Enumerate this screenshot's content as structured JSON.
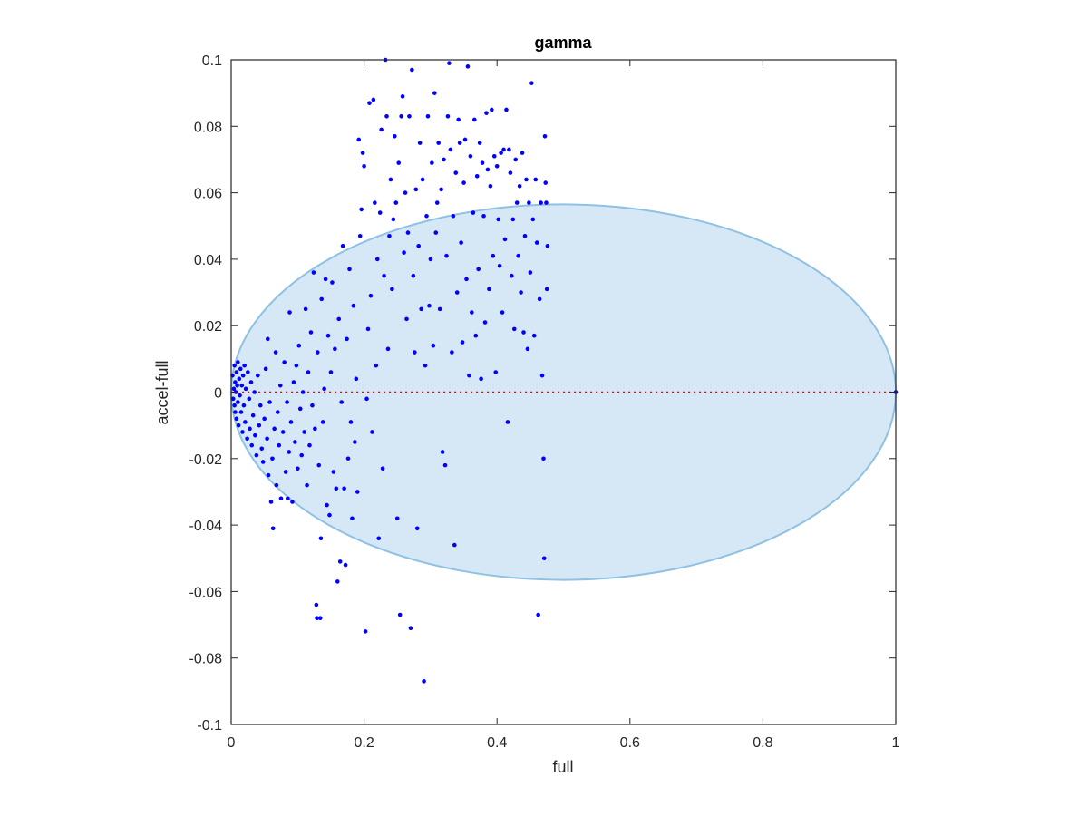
{
  "chart_data": {
    "type": "scatter",
    "title": "gamma",
    "xlabel": "full",
    "ylabel": "accel-full",
    "xlim": [
      0,
      1
    ],
    "ylim": [
      -0.1,
      0.1
    ],
    "xticks": [
      0,
      0.2,
      0.4,
      0.6,
      0.8,
      1
    ],
    "xtick_labels": [
      "0",
      "0.2",
      "0.4",
      "0.6",
      "0.8",
      "1"
    ],
    "yticks": [
      -0.1,
      -0.08,
      -0.06,
      -0.04,
      -0.02,
      0,
      0.02,
      0.04,
      0.06,
      0.08,
      0.1
    ],
    "ytick_labels": [
      "-0.1",
      "-0.08",
      "-0.06",
      "-0.04",
      "-0.02",
      "0",
      "0.02",
      "0.04",
      "0.06",
      "0.08",
      "0.1"
    ],
    "grid": false,
    "colors": {
      "points": "#0000ff",
      "ellipse_fill": "#d6e8f5",
      "ellipse_edge": "#8ec1e3",
      "reference_line": "#ff0000",
      "axes": "#262626"
    },
    "ellipse": {
      "center": [
        0.5,
        0
      ],
      "semi_axes": [
        0.5,
        0.0565
      ]
    },
    "reference_line": {
      "y": 0,
      "x": [
        0,
        1
      ],
      "style": "dotted"
    },
    "points": [
      [
        0.002,
        0.005
      ],
      [
        0.003,
        -0.002
      ],
      [
        0.004,
        0.001
      ],
      [
        0.005,
        0.008
      ],
      [
        0.005,
        -0.004
      ],
      [
        0.006,
        0.003
      ],
      [
        0.006,
        -0.006
      ],
      [
        0.007,
        0.0
      ],
      [
        0.008,
        0.006
      ],
      [
        0.008,
        -0.008
      ],
      [
        0.009,
        0.002
      ],
      [
        0.01,
        -0.003
      ],
      [
        0.01,
        0.009
      ],
      [
        0.011,
        -0.01
      ],
      [
        0.012,
        0.004
      ],
      [
        0.013,
        -0.001
      ],
      [
        0.014,
        0.007
      ],
      [
        0.015,
        -0.006
      ],
      [
        0.016,
        0.002
      ],
      [
        0.017,
        -0.012
      ],
      [
        0.018,
        0.005
      ],
      [
        0.019,
        -0.004
      ],
      [
        0.02,
        0.008
      ],
      [
        0.021,
        -0.009
      ],
      [
        0.022,
        0.001
      ],
      [
        0.024,
        -0.014
      ],
      [
        0.025,
        0.006
      ],
      [
        0.027,
        -0.002
      ],
      [
        0.028,
        -0.011
      ],
      [
        0.03,
        0.003
      ],
      [
        0.031,
        -0.016
      ],
      [
        0.033,
        -0.007
      ],
      [
        0.035,
        0.0
      ],
      [
        0.036,
        -0.013
      ],
      [
        0.038,
        -0.019
      ],
      [
        0.04,
        0.005
      ],
      [
        0.042,
        -0.01
      ],
      [
        0.044,
        -0.004
      ],
      [
        0.046,
        -0.017
      ],
      [
        0.048,
        -0.021
      ],
      [
        0.05,
        -0.008
      ],
      [
        0.052,
        0.007
      ],
      [
        0.054,
        -0.014
      ],
      [
        0.055,
        0.016
      ],
      [
        0.056,
        -0.025
      ],
      [
        0.058,
        -0.003
      ],
      [
        0.06,
        -0.033
      ],
      [
        0.062,
        -0.02
      ],
      [
        0.063,
        -0.041
      ],
      [
        0.065,
        -0.011
      ],
      [
        0.067,
        0.012
      ],
      [
        0.068,
        -0.028
      ],
      [
        0.07,
        -0.006
      ],
      [
        0.072,
        -0.016
      ],
      [
        0.074,
        0.002
      ],
      [
        0.075,
        -0.032
      ],
      [
        0.078,
        -0.012
      ],
      [
        0.08,
        0.009
      ],
      [
        0.082,
        -0.024
      ],
      [
        0.084,
        -0.003
      ],
      [
        0.085,
        -0.032
      ],
      [
        0.087,
        -0.018
      ],
      [
        0.088,
        0.024
      ],
      [
        0.09,
        -0.009
      ],
      [
        0.092,
        -0.033
      ],
      [
        0.094,
        0.003
      ],
      [
        0.096,
        -0.015
      ],
      [
        0.098,
        0.008
      ],
      [
        0.1,
        -0.023
      ],
      [
        0.102,
        0.014
      ],
      [
        0.104,
        -0.005
      ],
      [
        0.106,
        -0.019
      ],
      [
        0.108,
        0.0
      ],
      [
        0.11,
        -0.012
      ],
      [
        0.112,
        0.025
      ],
      [
        0.114,
        -0.028
      ],
      [
        0.116,
        0.006
      ],
      [
        0.118,
        -0.016
      ],
      [
        0.12,
        0.018
      ],
      [
        0.122,
        -0.004
      ],
      [
        0.124,
        0.036
      ],
      [
        0.126,
        -0.011
      ],
      [
        0.128,
        -0.064
      ],
      [
        0.129,
        -0.068
      ],
      [
        0.13,
        0.012
      ],
      [
        0.132,
        -0.022
      ],
      [
        0.134,
        -0.068
      ],
      [
        0.135,
        -0.044
      ],
      [
        0.136,
        0.028
      ],
      [
        0.138,
        -0.009
      ],
      [
        0.14,
        0.001
      ],
      [
        0.142,
        0.034
      ],
      [
        0.144,
        -0.034
      ],
      [
        0.146,
        0.017
      ],
      [
        0.148,
        -0.037
      ],
      [
        0.15,
        0.006
      ],
      [
        0.152,
        0.033
      ],
      [
        0.154,
        -0.024
      ],
      [
        0.156,
        0.013
      ],
      [
        0.158,
        -0.029
      ],
      [
        0.16,
        -0.057
      ],
      [
        0.162,
        0.022
      ],
      [
        0.164,
        -0.051
      ],
      [
        0.166,
        -0.003
      ],
      [
        0.168,
        0.044
      ],
      [
        0.17,
        -0.029
      ],
      [
        0.172,
        -0.052
      ],
      [
        0.174,
        0.016
      ],
      [
        0.176,
        -0.02
      ],
      [
        0.178,
        0.037
      ],
      [
        0.18,
        -0.009
      ],
      [
        0.182,
        -0.038
      ],
      [
        0.184,
        0.026
      ],
      [
        0.186,
        -0.015
      ],
      [
        0.188,
        0.004
      ],
      [
        0.19,
        -0.03
      ],
      [
        0.192,
        0.076
      ],
      [
        0.194,
        0.047
      ],
      [
        0.196,
        0.055
      ],
      [
        0.198,
        0.072
      ],
      [
        0.2,
        0.068
      ],
      [
        0.202,
        -0.072
      ],
      [
        0.204,
        -0.002
      ],
      [
        0.206,
        0.019
      ],
      [
        0.208,
        0.087
      ],
      [
        0.21,
        0.029
      ],
      [
        0.212,
        -0.012
      ],
      [
        0.214,
        0.088
      ],
      [
        0.216,
        0.057
      ],
      [
        0.218,
        0.008
      ],
      [
        0.22,
        0.04
      ],
      [
        0.222,
        -0.044
      ],
      [
        0.224,
        0.054
      ],
      [
        0.226,
        0.079
      ],
      [
        0.228,
        -0.023
      ],
      [
        0.23,
        0.035
      ],
      [
        0.232,
        0.1
      ],
      [
        0.234,
        0.083
      ],
      [
        0.236,
        0.013
      ],
      [
        0.238,
        0.047
      ],
      [
        0.24,
        0.064
      ],
      [
        0.242,
        0.031
      ],
      [
        0.244,
        0.052
      ],
      [
        0.246,
        0.077
      ],
      [
        0.248,
        0.057
      ],
      [
        0.25,
        -0.038
      ],
      [
        0.252,
        0.069
      ],
      [
        0.254,
        -0.067
      ],
      [
        0.256,
        0.083
      ],
      [
        0.258,
        0.089
      ],
      [
        0.26,
        0.042
      ],
      [
        0.262,
        0.06
      ],
      [
        0.264,
        0.022
      ],
      [
        0.266,
        0.048
      ],
      [
        0.268,
        0.083
      ],
      [
        0.27,
        -0.071
      ],
      [
        0.272,
        0.097
      ],
      [
        0.274,
        0.035
      ],
      [
        0.276,
        0.012
      ],
      [
        0.278,
        0.061
      ],
      [
        0.28,
        -0.041
      ],
      [
        0.282,
        0.044
      ],
      [
        0.284,
        0.075
      ],
      [
        0.286,
        0.025
      ],
      [
        0.288,
        0.064
      ],
      [
        0.29,
        -0.087
      ],
      [
        0.292,
        0.008
      ],
      [
        0.294,
        0.053
      ],
      [
        0.296,
        0.083
      ],
      [
        0.298,
        0.026
      ],
      [
        0.3,
        0.04
      ],
      [
        0.302,
        0.069
      ],
      [
        0.304,
        0.014
      ],
      [
        0.306,
        0.09
      ],
      [
        0.308,
        0.048
      ],
      [
        0.31,
        0.057
      ],
      [
        0.312,
        0.075
      ],
      [
        0.314,
        0.025
      ],
      [
        0.316,
        0.061
      ],
      [
        0.318,
        -0.018
      ],
      [
        0.32,
        0.07
      ],
      [
        0.322,
        -0.022
      ],
      [
        0.324,
        0.041
      ],
      [
        0.326,
        0.083
      ],
      [
        0.328,
        0.099
      ],
      [
        0.33,
        0.073
      ],
      [
        0.332,
        0.012
      ],
      [
        0.334,
        0.053
      ],
      [
        0.336,
        -0.046
      ],
      [
        0.338,
        0.066
      ],
      [
        0.34,
        0.03
      ],
      [
        0.342,
        0.082
      ],
      [
        0.344,
        0.075
      ],
      [
        0.346,
        0.045
      ],
      [
        0.348,
        0.015
      ],
      [
        0.35,
        0.063
      ],
      [
        0.352,
        0.076
      ],
      [
        0.354,
        0.034
      ],
      [
        0.356,
        0.098
      ],
      [
        0.358,
        0.005
      ],
      [
        0.36,
        0.071
      ],
      [
        0.362,
        0.024
      ],
      [
        0.364,
        0.054
      ],
      [
        0.366,
        0.082
      ],
      [
        0.368,
        0.017
      ],
      [
        0.37,
        0.065
      ],
      [
        0.372,
        0.037
      ],
      [
        0.374,
        0.075
      ],
      [
        0.376,
        0.004
      ],
      [
        0.378,
        0.069
      ],
      [
        0.38,
        0.053
      ],
      [
        0.382,
        0.021
      ],
      [
        0.384,
        0.084
      ],
      [
        0.386,
        0.067
      ],
      [
        0.388,
        0.031
      ],
      [
        0.39,
        0.062
      ],
      [
        0.392,
        0.085
      ],
      [
        0.394,
        0.041
      ],
      [
        0.396,
        0.071
      ],
      [
        0.398,
        0.006
      ],
      [
        0.4,
        0.068
      ],
      [
        0.402,
        0.052
      ],
      [
        0.404,
        0.038
      ],
      [
        0.406,
        0.072
      ],
      [
        0.408,
        0.024
      ],
      [
        0.41,
        0.073
      ],
      [
        0.412,
        0.046
      ],
      [
        0.414,
        0.085
      ],
      [
        0.416,
        -0.009
      ],
      [
        0.418,
        0.073
      ],
      [
        0.42,
        0.066
      ],
      [
        0.422,
        0.035
      ],
      [
        0.424,
        0.052
      ],
      [
        0.426,
        0.019
      ],
      [
        0.428,
        0.07
      ],
      [
        0.43,
        0.057
      ],
      [
        0.432,
        0.041
      ],
      [
        0.434,
        0.062
      ],
      [
        0.436,
        0.03
      ],
      [
        0.438,
        0.072
      ],
      [
        0.44,
        0.018
      ],
      [
        0.442,
        0.047
      ],
      [
        0.444,
        0.064
      ],
      [
        0.446,
        0.013
      ],
      [
        0.448,
        0.057
      ],
      [
        0.45,
        0.036
      ],
      [
        0.452,
        0.093
      ],
      [
        0.454,
        0.052
      ],
      [
        0.456,
        0.017
      ],
      [
        0.458,
        0.064
      ],
      [
        0.46,
        0.045
      ],
      [
        0.462,
        -0.067
      ],
      [
        0.464,
        0.028
      ],
      [
        0.466,
        0.057
      ],
      [
        0.468,
        0.005
      ],
      [
        0.47,
        -0.02
      ],
      [
        0.471,
        -0.05
      ],
      [
        0.472,
        0.077
      ],
      [
        0.473,
        0.063
      ],
      [
        0.474,
        0.057
      ],
      [
        0.475,
        0.031
      ],
      [
        0.476,
        0.044
      ],
      [
        1.0,
        0.0
      ]
    ]
  }
}
